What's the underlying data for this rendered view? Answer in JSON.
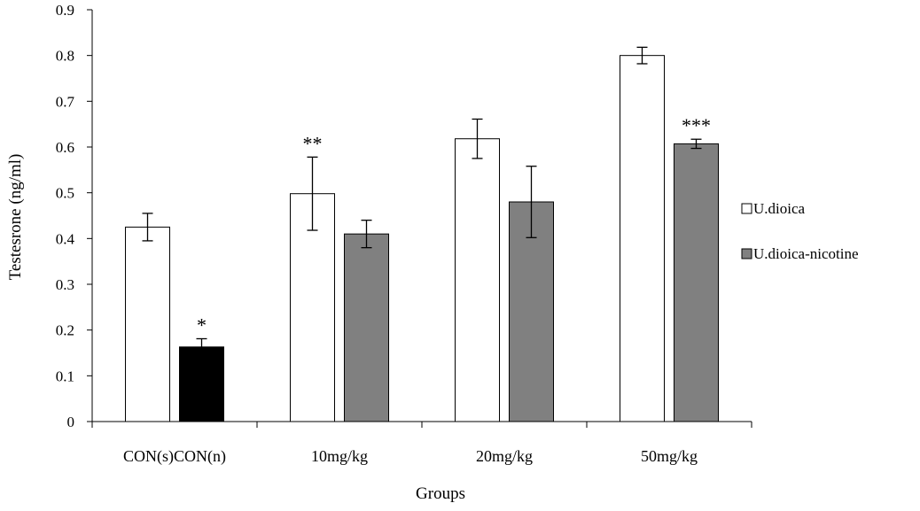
{
  "chart_data": {
    "type": "bar",
    "categories": [
      "CON(s)CON(n)",
      "10mg/kg",
      "20mg/kg",
      "50mg/kg"
    ],
    "series": [
      {
        "name": "U.dioica",
        "values": [
          0.425,
          0.498,
          0.618,
          0.8
        ],
        "errors": [
          0.03,
          0.08,
          0.043,
          0.018
        ],
        "color": "#ffffff",
        "significance": [
          "",
          "**",
          "",
          ""
        ]
      },
      {
        "name": "U.dioica-nicotine",
        "values": [
          0.163,
          0.41,
          0.48,
          0.607
        ],
        "errors": [
          0.018,
          0.03,
          0.078,
          0.01
        ],
        "color": "#808080",
        "significance": [
          "*",
          "",
          "",
          "***"
        ]
      }
    ],
    "bar_color_overrides": [
      {
        "series": 1,
        "category": 0,
        "color": "#000000"
      }
    ],
    "ylim": [
      0,
      0.9
    ],
    "yticks": [
      "0",
      "0.1",
      "0.2",
      "0.3",
      "0.4",
      "0.5",
      "0.6",
      "0.7",
      "0.8",
      "0.9"
    ],
    "xlabel": "Groups",
    "ylabel": "Testesrone (ng/ml)",
    "grid": false,
    "legend_position": "right"
  }
}
